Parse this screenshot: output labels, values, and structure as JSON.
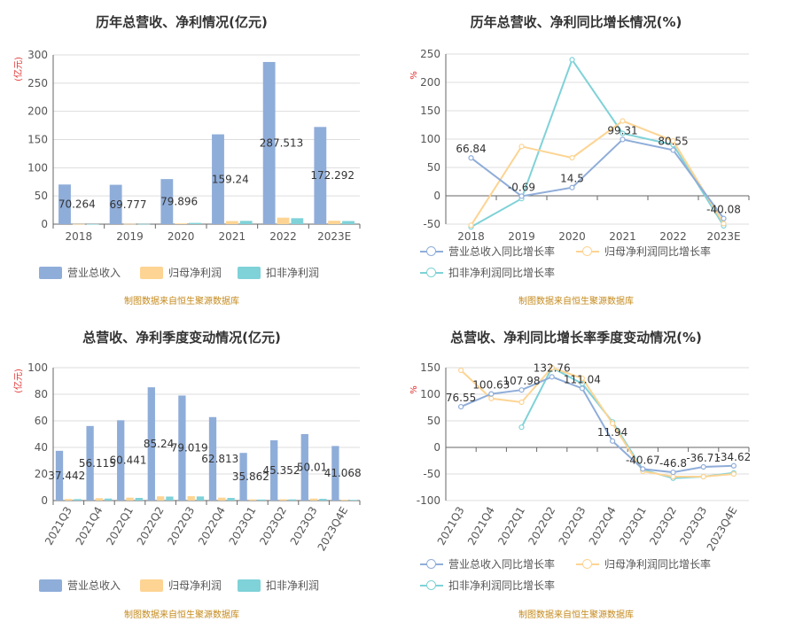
{
  "source_text": "制图数据来自恒生聚源数据库",
  "colors": {
    "revenue": "#8fadd9",
    "net_profit": "#fdd493",
    "deducted": "#7fd2d8",
    "grid": "#dddddd",
    "axis": "#666666",
    "unit_red": "#e03030"
  },
  "legend": {
    "bar": [
      "营业总收入",
      "归母净利润",
      "扣非净利润"
    ],
    "line": [
      "营业总收入同比增长率",
      "归母净利润同比增长率",
      "扣非净利润同比增长率"
    ]
  },
  "chart_data": [
    {
      "type": "bar",
      "title": "历年总营收、净利情况(亿元)",
      "ylabel": "(亿元)",
      "ylim": [
        0,
        300
      ],
      "yticks": [
        0,
        50,
        100,
        150,
        200,
        250,
        300
      ],
      "categories": [
        "2018",
        "2019",
        "2020",
        "2021",
        "2022",
        "2023E"
      ],
      "series": [
        {
          "name": "营业总收入",
          "values": [
            70.264,
            69.777,
            79.896,
            159.24,
            287.513,
            172.292
          ],
          "labels": [
            "70.264",
            "69.777",
            "79.896",
            "159.24",
            "287.513",
            "172.292"
          ]
        },
        {
          "name": "归母净利润",
          "values": [
            0.3,
            0.5,
            1.3,
            5.5,
            11.5,
            6.0
          ]
        },
        {
          "name": "扣非净利润",
          "values": [
            0.2,
            0.4,
            2.2,
            5.8,
            10.5,
            5.5
          ]
        }
      ]
    },
    {
      "type": "line",
      "title": "历年总营收、净利同比增长情况(%)",
      "ylabel": "%",
      "ylim": [
        -50,
        250
      ],
      "yticks": [
        -50,
        0,
        50,
        100,
        150,
        200,
        250
      ],
      "categories": [
        "2018",
        "2019",
        "2020",
        "2021",
        "2022",
        "2023E"
      ],
      "series": [
        {
          "name": "营业总收入同比增长率",
          "values": [
            66.84,
            -0.69,
            14.5,
            99.31,
            80.55,
            -40.08
          ],
          "labels": [
            "66.84",
            "-0.69",
            "14.5",
            "99.31",
            "80.55",
            "-40.08"
          ]
        },
        {
          "name": "归母净利润同比增长率",
          "values": [
            -52,
            87,
            67,
            132,
            97,
            -49
          ]
        },
        {
          "name": "扣非净利润同比增长率",
          "values": [
            -55,
            -5,
            240,
            110,
            90,
            -53
          ]
        }
      ]
    },
    {
      "type": "bar",
      "title": "总营收、净利季度变动情况(亿元)",
      "ylabel": "(亿元)",
      "ylim": [
        0,
        100
      ],
      "yticks": [
        0,
        20,
        40,
        60,
        80,
        100
      ],
      "categories": [
        "2021Q3",
        "2021Q4",
        "2022Q1",
        "2022Q2",
        "2022Q3",
        "2022Q4",
        "2023Q1",
        "2023Q2",
        "2023Q3",
        "2023Q4E"
      ],
      "series": [
        {
          "name": "营业总收入",
          "values": [
            37.442,
            56.115,
            60.441,
            85.24,
            79.019,
            62.813,
            35.862,
            45.352,
            50.01,
            41.068
          ],
          "labels": [
            "37.442",
            "56.115",
            "60.441",
            "85.24",
            "79.019",
            "62.813",
            "35.862",
            "45.352",
            "50.01",
            "41.068"
          ]
        },
        {
          "name": "归母净利润",
          "values": [
            1.2,
            1.8,
            2.2,
            3.2,
            3.3,
            2.2,
            0.9,
            1.0,
            1.5,
            0.6
          ]
        },
        {
          "name": "扣非净利润",
          "values": [
            1.1,
            1.5,
            2.0,
            3.0,
            3.1,
            2.0,
            0.8,
            0.9,
            1.3,
            0.5
          ]
        }
      ]
    },
    {
      "type": "line",
      "title": "总营收、净利同比增长率季度变动情况(%)",
      "ylabel": "%",
      "ylim": [
        -100,
        150
      ],
      "yticks": [
        -100,
        -50,
        0,
        50,
        100,
        150
      ],
      "categories": [
        "2021Q3",
        "2021Q4",
        "2022Q1",
        "2022Q2",
        "2022Q3",
        "2022Q4",
        "2023Q1",
        "2023Q2",
        "2023Q3",
        "2023Q4E"
      ],
      "series": [
        {
          "name": "营业总收入同比增长率",
          "values": [
            76.55,
            100.63,
            107.98,
            132.76,
            111.04,
            11.94,
            -40.67,
            -46.8,
            -36.71,
            -34.62
          ],
          "labels": [
            "76.55",
            "100.63",
            "107.98",
            "132.76",
            "111.04",
            "11.94",
            "-40.67",
            "-46.8",
            "-36.71",
            "-34.62"
          ]
        },
        {
          "name": "归母净利润同比增长率",
          "values": [
            145,
            92,
            85,
            150,
            130,
            45,
            -45,
            -55,
            -55,
            -50
          ]
        },
        {
          "name": "扣非净利润同比增长率",
          "values": [
            null,
            null,
            38,
            150,
            120,
            48,
            -42,
            -58,
            -55,
            -48
          ]
        }
      ]
    }
  ]
}
